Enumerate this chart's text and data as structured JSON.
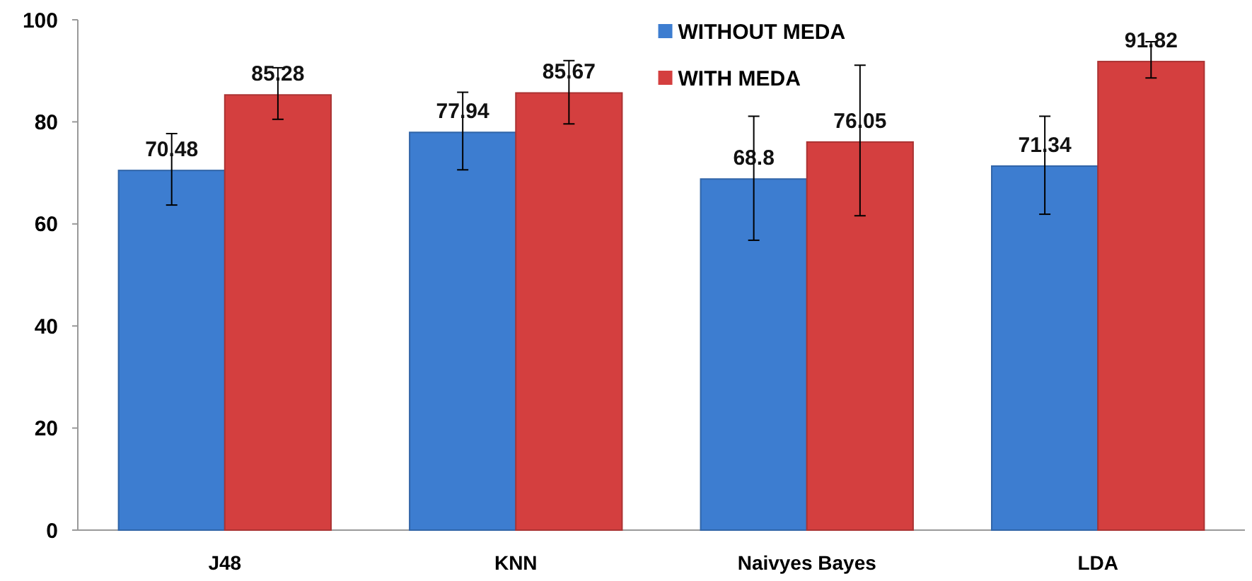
{
  "chart_data": {
    "type": "bar",
    "categories": [
      "J48",
      "KNN",
      "Naivyes Bayes",
      "LDA"
    ],
    "series": [
      {
        "name": "WITHOUT MEDA",
        "color": "#3d7dd0",
        "values": [
          70.48,
          77.94,
          68.8,
          71.34
        ],
        "errors": [
          [
            63.7,
            77.7
          ],
          [
            70.6,
            85.8
          ],
          [
            56.8,
            81.1
          ],
          [
            61.9,
            81.1
          ]
        ]
      },
      {
        "name": "WITH MEDA",
        "color": "#d43f3f",
        "values": [
          85.28,
          85.67,
          76.05,
          91.82
        ],
        "errors": [
          [
            80.5,
            90.6
          ],
          [
            79.6,
            92
          ],
          [
            61.6,
            91.1
          ],
          [
            88.6,
            95.7
          ]
        ]
      }
    ],
    "ylim": [
      0,
      100
    ],
    "yticks": [
      0,
      20,
      40,
      60,
      80,
      100
    ],
    "grid": false,
    "legend": "top",
    "data_labels": true
  }
}
